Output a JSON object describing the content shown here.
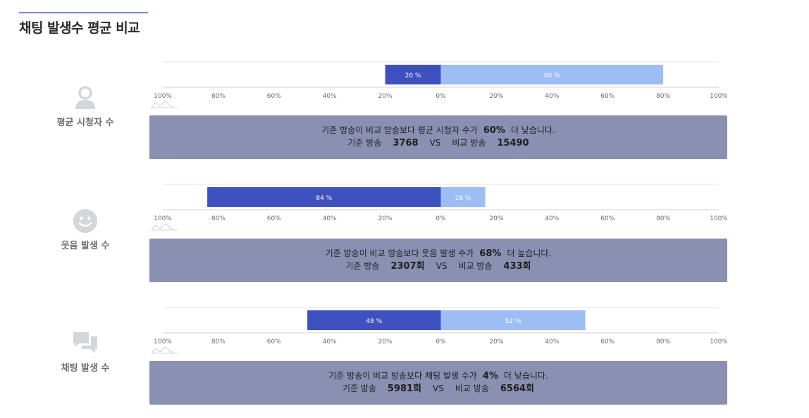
{
  "page": {
    "title": "채팅 발생수 평균 비교"
  },
  "axis": {
    "ticks": [
      "100%",
      "80%",
      "60%",
      "40%",
      "20%",
      "0%",
      "20%",
      "40%",
      "60%",
      "80%",
      "100%"
    ]
  },
  "colors": {
    "left_bar": "#3f51bf",
    "right_bar": "#9dbdf5",
    "info_bg": "#8a90b2",
    "accent": "#7f86e0",
    "icon": "#d4d6dc"
  },
  "chart_data": [
    {
      "type": "bar",
      "orientation": "horizontal-diverging",
      "xlim": [
        -100,
        100
      ],
      "series": [
        {
          "value": 20,
          "label": "20 %"
        },
        {
          "value": 80,
          "label": "80 %"
        }
      ]
    },
    {
      "type": "bar",
      "orientation": "horizontal-diverging",
      "xlim": [
        -100,
        100
      ],
      "series": [
        {
          "value": 84,
          "label": "84 %"
        },
        {
          "value": 16,
          "label": "16 %"
        }
      ]
    },
    {
      "type": "bar",
      "orientation": "horizontal-diverging",
      "xlim": [
        -100,
        100
      ],
      "series": [
        {
          "value": 48,
          "label": "48 %"
        },
        {
          "value": 52,
          "label": "52 %"
        }
      ]
    }
  ],
  "sections": [
    {
      "icon": "user-icon",
      "label": "평균 시청자 수",
      "summary": {
        "pre": "기준 방송이 비교 방송보다 평균 시청자 수가",
        "pct": "60%",
        "post": "더 낮습니다."
      },
      "compare": {
        "base_label": "기준 방송",
        "base_value": "3768",
        "vs": "VS",
        "comp_label": "비교 방송",
        "comp_value": "15490"
      }
    },
    {
      "icon": "smile-icon",
      "label": "웃음 발생 수",
      "summary": {
        "pre": "기준 방송이 비교 방송보다 웃음 발생 수가",
        "pct": "68%",
        "post": "더 높습니다."
      },
      "compare": {
        "base_label": "기준 방송",
        "base_value": "2307회",
        "vs": "VS",
        "comp_label": "비교 방송",
        "comp_value": "433회"
      }
    },
    {
      "icon": "chat-icon",
      "label": "채팅 발생 수",
      "summary": {
        "pre": "기준 방송이 비교 방송보다 채팅 발생 수가",
        "pct": "4%",
        "post": "더 낮습니다."
      },
      "compare": {
        "base_label": "기준 방송",
        "base_value": "5981회",
        "vs": "VS",
        "comp_label": "비교 방송",
        "comp_value": "6564회"
      }
    }
  ]
}
